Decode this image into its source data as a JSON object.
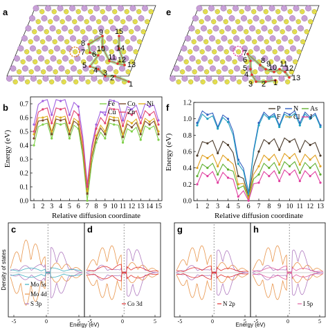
{
  "panels": {
    "a": "a",
    "b": "b",
    "c": "c",
    "d": "d",
    "e": "e",
    "f": "f",
    "g": "g",
    "h": "h"
  },
  "structure_a": {
    "sites": [
      "1",
      "2",
      "3",
      "4",
      "5",
      "6",
      "7",
      "8",
      "9",
      "10",
      "11",
      "12",
      "13",
      "14",
      "15"
    ],
    "mo_color": "#c9a0d8",
    "s_color": "#e6e04a",
    "path_color": "#7fe07f",
    "dot_color": "#e83030"
  },
  "structure_e": {
    "sites": [
      "1",
      "2",
      "3",
      "4",
      "5",
      "6",
      "7",
      "8",
      "9",
      "10",
      "11",
      "12",
      "13"
    ]
  },
  "chart_data": [
    {
      "panel": "b",
      "type": "line",
      "xlabel": "Relative diffusion coordinate",
      "ylabel": "Energy (eV)",
      "xticks": [
        "1",
        "2",
        "3",
        "4",
        "5",
        "6",
        "7",
        "8",
        "9",
        "10",
        "11",
        "12",
        "13",
        "14",
        "15"
      ],
      "yticks": [
        "0.0",
        "0.1",
        "0.2",
        "0.3",
        "0.4",
        "0.5",
        "0.6",
        "0.7"
      ],
      "ylim": [
        0,
        0.75
      ],
      "xlim": [
        1,
        15
      ],
      "legend": [
        "Fe",
        "Co",
        "Ni",
        "Cu",
        "Zn"
      ],
      "series": [
        {
          "name": "Fe",
          "color": "#7fd04a",
          "values": [
            0.4,
            0.55,
            0.45,
            0.55,
            0.45,
            0.52,
            0.0,
            0.42,
            0.45,
            0.55,
            0.42,
            0.5,
            0.44,
            0.52,
            0.44
          ]
        },
        {
          "name": "Co",
          "color": "#7a4a2a",
          "values": [
            0.45,
            0.58,
            0.48,
            0.58,
            0.48,
            0.55,
            0.05,
            0.45,
            0.48,
            0.58,
            0.46,
            0.53,
            0.48,
            0.55,
            0.48
          ]
        },
        {
          "name": "Ni",
          "color": "#e0b020",
          "values": [
            0.48,
            0.6,
            0.5,
            0.6,
            0.5,
            0.57,
            0.07,
            0.47,
            0.5,
            0.6,
            0.48,
            0.56,
            0.5,
            0.57,
            0.5
          ]
        },
        {
          "name": "Cu",
          "color": "#a060e0",
          "values": [
            0.55,
            0.72,
            0.62,
            0.72,
            0.62,
            0.68,
            0.12,
            0.55,
            0.62,
            0.72,
            0.58,
            0.66,
            0.6,
            0.68,
            0.58
          ]
        },
        {
          "name": "Zn",
          "color": "#e04070",
          "values": [
            0.5,
            0.66,
            0.56,
            0.66,
            0.56,
            0.62,
            0.1,
            0.52,
            0.56,
            0.66,
            0.54,
            0.62,
            0.56,
            0.62,
            0.55
          ]
        }
      ]
    },
    {
      "panel": "f",
      "type": "line",
      "xlabel": "Relative diffusion coordinate",
      "ylabel": "Energy (eV)",
      "xticks": [
        "1",
        "2",
        "3",
        "4",
        "5",
        "6",
        "7",
        "8",
        "9",
        "10",
        "11",
        "12",
        "13"
      ],
      "yticks": [
        "0.0",
        "0.2",
        "0.4",
        "0.6",
        "0.8",
        "1.0",
        "1.2"
      ],
      "ylim": [
        0,
        1.2
      ],
      "xlim": [
        1,
        13
      ],
      "legend": [
        "P",
        "N",
        "As",
        "F",
        "Cl",
        "I"
      ],
      "series": [
        {
          "name": "P",
          "color": "#4a3a2a",
          "values": [
            0.55,
            0.7,
            0.58,
            0.68,
            0.3,
            0.05,
            0.6,
            0.7,
            0.62,
            0.72,
            0.6,
            0.68,
            0.55
          ]
        },
        {
          "name": "N",
          "color": "#3060c0",
          "values": [
            0.95,
            1.05,
            0.9,
            1.0,
            0.5,
            0.1,
            0.95,
            1.02,
            0.92,
            1.05,
            0.95,
            1.02,
            0.92
          ]
        },
        {
          "name": "As",
          "color": "#60b030",
          "values": [
            0.3,
            0.4,
            0.32,
            0.38,
            0.15,
            0.02,
            0.32,
            0.4,
            0.34,
            0.42,
            0.34,
            0.4,
            0.32
          ]
        },
        {
          "name": "F",
          "color": "#20a0c0",
          "values": [
            0.92,
            1.0,
            0.88,
            0.96,
            0.45,
            0.08,
            0.92,
            1.0,
            0.9,
            1.02,
            0.92,
            1.0,
            0.9
          ]
        },
        {
          "name": "Cl",
          "color": "#e0a020",
          "values": [
            0.4,
            0.52,
            0.42,
            0.5,
            0.2,
            0.03,
            0.42,
            0.5,
            0.44,
            0.52,
            0.44,
            0.5,
            0.42
          ]
        },
        {
          "name": "I",
          "color": "#e040a0",
          "values": [
            0.2,
            0.3,
            0.22,
            0.28,
            0.05,
            0.0,
            0.22,
            0.3,
            0.24,
            0.32,
            0.24,
            0.3,
            0.22
          ]
        }
      ]
    },
    {
      "panel": "c",
      "type": "line",
      "ylabel": "Density of states",
      "xticks": [
        "-5",
        "0",
        "5"
      ],
      "legend": [
        "Mo 5s",
        "Mo 4d",
        "S 3p"
      ]
    },
    {
      "panel": "d",
      "type": "line",
      "xticks": [
        "-5",
        "0",
        "5"
      ],
      "xlabel": "Energy (eV)",
      "legend": [
        "Co 3d"
      ]
    },
    {
      "panel": "g",
      "type": "line",
      "xticks": [
        "-5",
        "0",
        "5"
      ],
      "legend": [
        "N 2p"
      ]
    },
    {
      "panel": "h",
      "type": "line",
      "xticks": [
        "-5",
        "0",
        "5"
      ],
      "xlabel": "Energy (eV)",
      "legend": [
        "I 5p"
      ]
    }
  ]
}
